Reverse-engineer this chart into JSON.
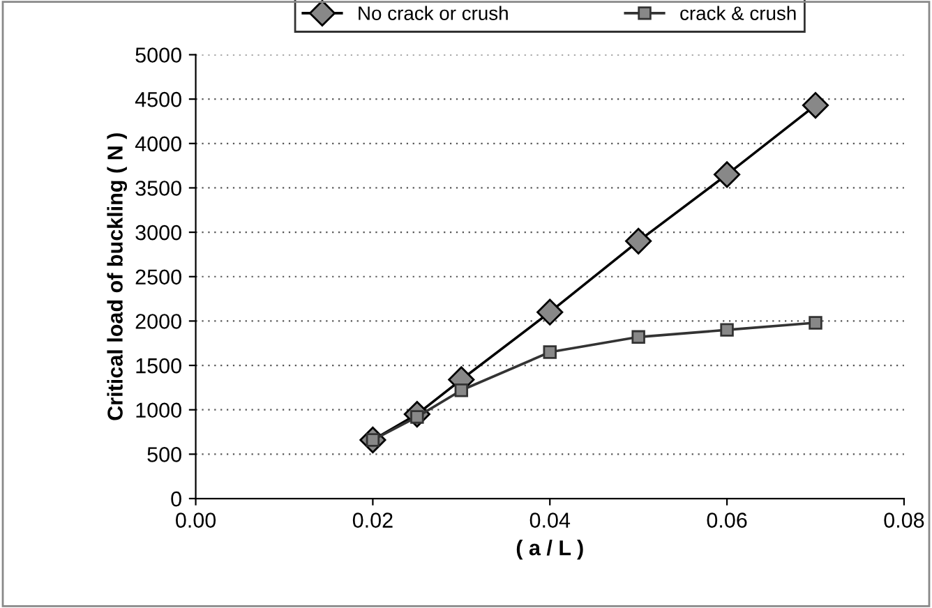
{
  "chart_data": {
    "type": "line",
    "xlabel": "( a / L )",
    "ylabel": "Critical load of buckling ( N )",
    "x": [
      0.02,
      0.025,
      0.03,
      0.04,
      0.05,
      0.06,
      0.07
    ],
    "series": [
      {
        "name": "No crack or crush",
        "color": "#000000",
        "marker": "diamond",
        "values": [
          660,
          950,
          1340,
          2100,
          2900,
          3650,
          4430
        ]
      },
      {
        "name": "crack & crush",
        "color": "#333333",
        "marker": "square",
        "values": [
          660,
          920,
          1220,
          1650,
          1820,
          1900,
          1980
        ]
      }
    ],
    "xlim": [
      0,
      0.08
    ],
    "xticks": [
      {
        "value": 0,
        "label": "0.00"
      },
      0.02,
      0.04,
      0.06,
      {
        "value": 0.08,
        "label": "0.08"
      }
    ],
    "ylim": [
      0,
      5000
    ],
    "yticks": [
      0,
      500,
      1000,
      1500,
      2000,
      2500,
      3000,
      3500,
      4000,
      4500,
      5000
    ],
    "grid": "y",
    "legend": "top",
    "line_style": "solid"
  }
}
